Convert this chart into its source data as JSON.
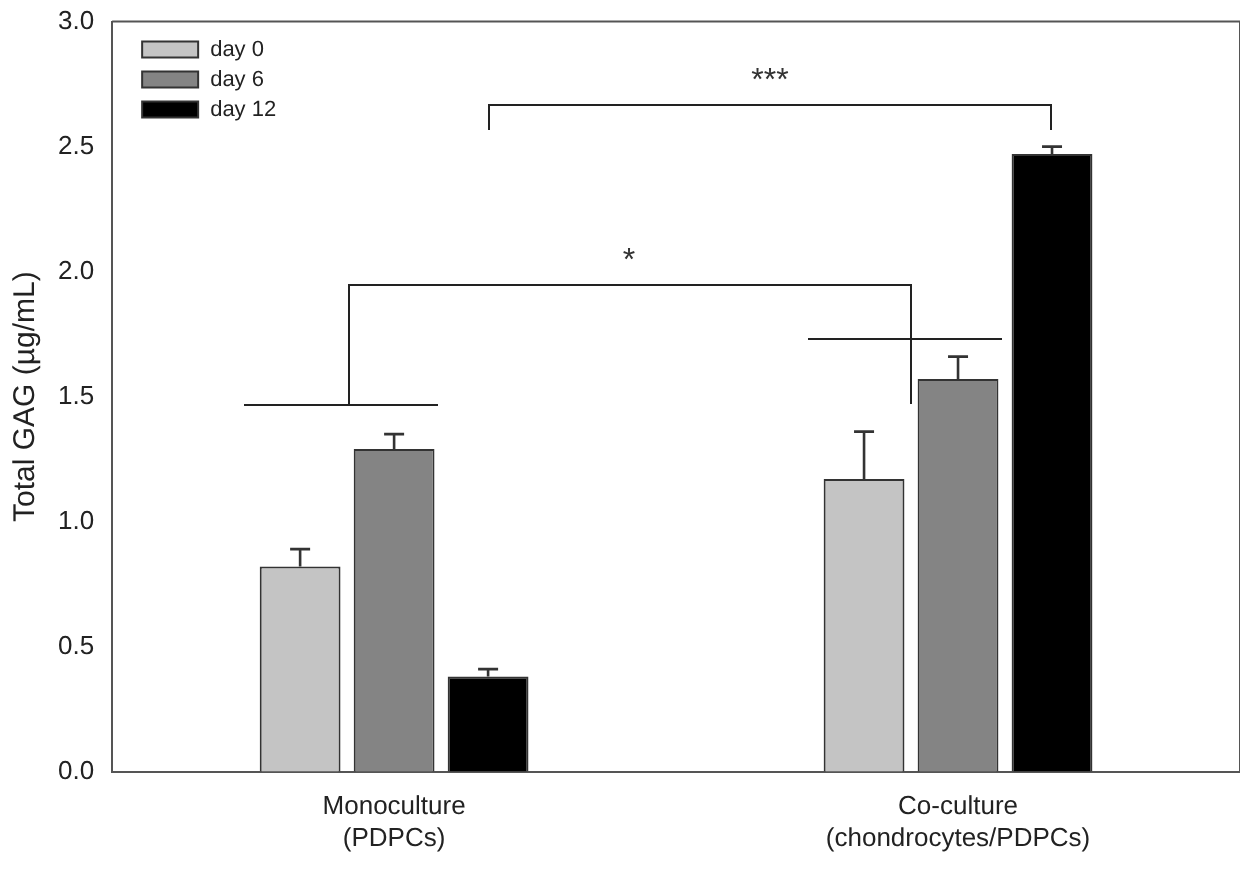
{
  "chart_data": {
    "type": "bar",
    "ylabel": "Total GAG (µg/mL)",
    "categories": [
      "Monoculture\n(PDPCs)",
      "Co-culture\n(chondrocytes/PDPCs)"
    ],
    "series": [
      {
        "name": "day 0",
        "color": "#c4c4c4",
        "values": [
          0.82,
          1.17
        ],
        "errors": [
          0.07,
          0.19
        ]
      },
      {
        "name": "day 6",
        "color": "#848484",
        "values": [
          1.29,
          1.57
        ],
        "errors": [
          0.06,
          0.09
        ]
      },
      {
        "name": "day 12",
        "color": "#000000",
        "values": [
          0.38,
          2.47
        ],
        "errors": [
          0.03,
          0.03
        ]
      }
    ],
    "ylim": [
      0,
      3
    ],
    "yticks": [
      {
        "value": 0,
        "label": "0.0"
      },
      {
        "value": 0.5,
        "label": "0.5"
      },
      {
        "value": 1,
        "label": "1.0"
      },
      {
        "value": 1.5,
        "label": "1.5"
      },
      {
        "value": 2,
        "label": "2.0"
      },
      {
        "value": 2.5,
        "label": "2.5"
      },
      {
        "value": 3,
        "label": "3.0"
      }
    ],
    "grid": false,
    "legend": "top left",
    "annotations": [
      "*",
      "***"
    ]
  }
}
